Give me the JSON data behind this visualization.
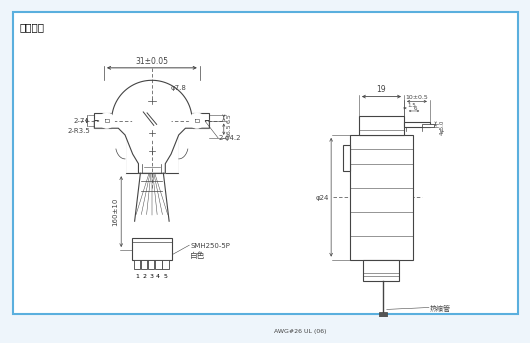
{
  "bg_color": "#eef5fb",
  "border_color": "#5aafde",
  "line_color": "#444444",
  "dim_color": "#444444",
  "title": "外形图：",
  "annotations": {
    "dim_31": "31±0.05",
    "dim_phi78": "φ7.8",
    "dim_65": "6.5",
    "dim_165": "16.5",
    "dim_2phi42": "2-φ4.2",
    "dim_2r35": "2-R3.5",
    "dim_27": "2-7",
    "dim_160": "160±10",
    "dim_smh": "SMH250-5P",
    "dim_white": "白色",
    "dim_19": "19",
    "dim_10": "10±0.5",
    "dim_15": "1.5",
    "dim_6": "6",
    "dim_phi24": "φ24",
    "dim_awg": "AWG#26 UL (06)",
    "dim_shrink": "热缩管",
    "pins": [
      "1",
      "2",
      "3",
      "4",
      "5"
    ],
    "dim_45": "φ5.0",
    "dim_4": "4"
  }
}
